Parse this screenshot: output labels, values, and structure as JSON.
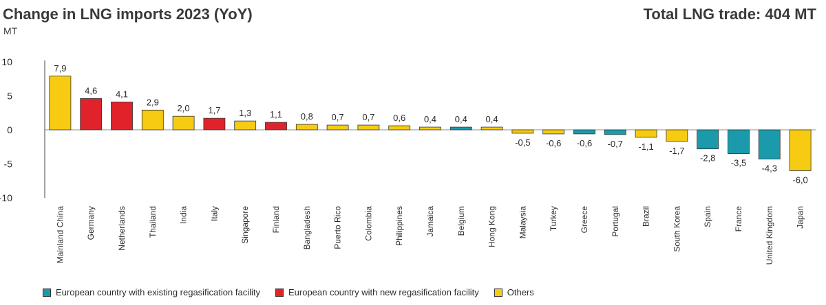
{
  "header": {
    "title": "Change in LNG imports 2023 (YoY)",
    "unit": "MT",
    "total": "Total LNG trade: 404 MT"
  },
  "colors": {
    "existing": "#1a9aaa",
    "new": "#e0232b",
    "others": "#f7cb12"
  },
  "chart_data": {
    "type": "bar",
    "title": "Change in LNG imports 2023 (YoY)",
    "ylabel": "MT",
    "ylim": [
      -10,
      10
    ],
    "yticks": [
      10,
      5,
      0,
      -5,
      -10
    ],
    "categories": [
      "Mainland China",
      "Germany",
      "Netherlands",
      "Thailand",
      "India",
      "Italy",
      "Singapore",
      "Finland",
      "Bangladesh",
      "Puerto Rico",
      "Colombia",
      "Philippines",
      "Jamaica",
      "Belgium",
      "Hong Kong",
      "Malaysia",
      "Turkey",
      "Greece",
      "Portugal",
      "Brazil",
      "South Korea",
      "Spain",
      "France",
      "United Kingdom",
      "Japan"
    ],
    "values": [
      7.9,
      4.6,
      4.1,
      2.9,
      2.0,
      1.7,
      1.3,
      1.1,
      0.8,
      0.7,
      0.7,
      0.6,
      0.4,
      0.4,
      0.4,
      -0.5,
      -0.6,
      -0.6,
      -0.7,
      -1.1,
      -1.7,
      -2.8,
      -3.5,
      -4.3,
      -6.0
    ],
    "labels": [
      "7,9",
      "4,6",
      "4,1",
      "2,9",
      "2,0",
      "1,7",
      "1,3",
      "1,1",
      "0,8",
      "0,7",
      "0,7",
      "0,6",
      "0,4",
      "0,4",
      "0,4",
      "-0,5",
      "-0,6",
      "-0,6",
      "-0,7",
      "-1,1",
      "-1,7",
      "-2,8",
      "-3,5",
      "-4,3",
      "-6,0"
    ],
    "groups": [
      "others",
      "new",
      "new",
      "others",
      "others",
      "new",
      "others",
      "new",
      "others",
      "others",
      "others",
      "others",
      "others",
      "existing",
      "others",
      "others",
      "others",
      "existing",
      "existing",
      "others",
      "others",
      "existing",
      "existing",
      "existing",
      "others"
    ],
    "legend": [
      {
        "key": "existing",
        "label": "European country with existing regasification facility"
      },
      {
        "key": "new",
        "label": "European country with new regasification facility"
      },
      {
        "key": "others",
        "label": "Others"
      }
    ]
  }
}
